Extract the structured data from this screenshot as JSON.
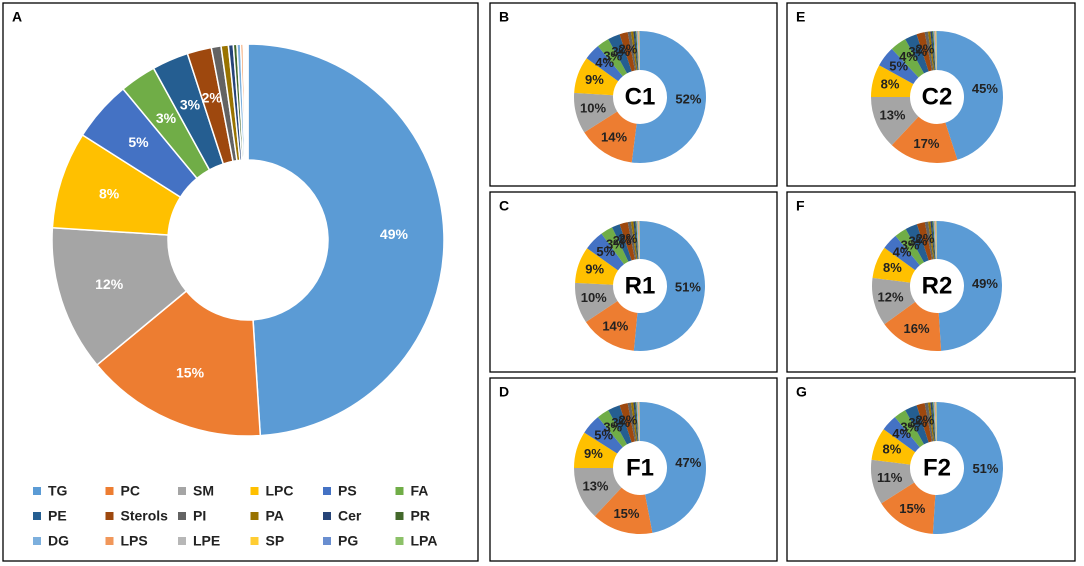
{
  "chart_data": [
    {
      "type": "pie",
      "panel": "A",
      "categories": [
        "TG",
        "PC",
        "SM",
        "LPC",
        "PS",
        "FA",
        "PE",
        "Sterols",
        "PI",
        "PA",
        "Cer",
        "PR",
        "DG",
        "LPS",
        "LPE",
        "SP",
        "PG",
        "LPA"
      ],
      "colors": [
        "#5b9bd5",
        "#ed7d31",
        "#a5a5a5",
        "#ffc000",
        "#4472c4",
        "#70ad47",
        "#255e91",
        "#9e480e",
        "#636363",
        "#997300",
        "#264478",
        "#43682b",
        "#7cafdd",
        "#f1975a",
        "#b7b7b7",
        "#ffcd33",
        "#698ed0",
        "#8cc168"
      ],
      "values": [
        49,
        15,
        12,
        8,
        5,
        3,
        3,
        2,
        0.8,
        0.6,
        0.4,
        0.3,
        0.3,
        0.2,
        0.1,
        0.1,
        0.1,
        0.1
      ],
      "value_labels": [
        "49%",
        "15%",
        "12%",
        "8%",
        "5%",
        "3%",
        "3%",
        "2%",
        null,
        null,
        null,
        null,
        null,
        null,
        null,
        null,
        null,
        null
      ]
    },
    {
      "type": "pie",
      "panel": "B",
      "center_label": "C1",
      "values": [
        52,
        14,
        10,
        9,
        4,
        3,
        3,
        2,
        0.8,
        0.6,
        0.4,
        0.3,
        0.3,
        0.2,
        0.1,
        0.1,
        0.1,
        0.1
      ],
      "value_labels": [
        "52%",
        "14%",
        "10%",
        "9%",
        "4%",
        "3%",
        "3%",
        "2%",
        null,
        null,
        null,
        null,
        null,
        null,
        null,
        null,
        null,
        null
      ]
    },
    {
      "type": "pie",
      "panel": "E",
      "center_label": "C2",
      "values": [
        45,
        17,
        13,
        8,
        5,
        4,
        3,
        2,
        0.8,
        0.6,
        0.4,
        0.3,
        0.3,
        0.2,
        0.1,
        0.1,
        0.1,
        0.1
      ],
      "value_labels": [
        "45%",
        "17%",
        "13%",
        "8%",
        "5%",
        "4%",
        "3%",
        "2%",
        null,
        null,
        null,
        null,
        null,
        null,
        null,
        null,
        null,
        null
      ]
    },
    {
      "type": "pie",
      "panel": "C",
      "center_label": "R1",
      "values": [
        51,
        14,
        10,
        9,
        5,
        3,
        2,
        2,
        0.8,
        0.6,
        0.4,
        0.3,
        0.3,
        0.2,
        0.1,
        0.1,
        0.1,
        0.1
      ],
      "value_labels": [
        "51%",
        "14%",
        "10%",
        "9%",
        "5%",
        "3%",
        "2%",
        "2%",
        null,
        null,
        null,
        null,
        null,
        null,
        null,
        null,
        null,
        null
      ]
    },
    {
      "type": "pie",
      "panel": "F",
      "center_label": "R2",
      "values": [
        49,
        16,
        12,
        8,
        4,
        3,
        3,
        2,
        0.8,
        0.6,
        0.4,
        0.3,
        0.3,
        0.2,
        0.1,
        0.1,
        0.1,
        0.1
      ],
      "value_labels": [
        "49%",
        "16%",
        "12%",
        "8%",
        "4%",
        "3%",
        "3%",
        "2%",
        null,
        null,
        null,
        null,
        null,
        null,
        null,
        null,
        null,
        null
      ]
    },
    {
      "type": "pie",
      "panel": "D",
      "center_label": "F1",
      "values": [
        47,
        15,
        13,
        9,
        5,
        3,
        3,
        2,
        0.8,
        0.6,
        0.4,
        0.3,
        0.3,
        0.2,
        0.1,
        0.1,
        0.1,
        0.1
      ],
      "value_labels": [
        "47%",
        "15%",
        "13%",
        "9%",
        "5%",
        "3%",
        "3%",
        "2%",
        null,
        null,
        null,
        null,
        null,
        null,
        null,
        null,
        null,
        null
      ]
    },
    {
      "type": "pie",
      "panel": "G",
      "center_label": "F2",
      "values": [
        51,
        15,
        11,
        8,
        4,
        3,
        3,
        2,
        0.8,
        0.6,
        0.4,
        0.3,
        0.3,
        0.2,
        0.1,
        0.1,
        0.1,
        0.1
      ],
      "value_labels": [
        "51%",
        "15%",
        "11%",
        "8%",
        "4%",
        "3%",
        "3%",
        "2%",
        null,
        null,
        null,
        null,
        null,
        null,
        null,
        null,
        null,
        null
      ]
    }
  ]
}
